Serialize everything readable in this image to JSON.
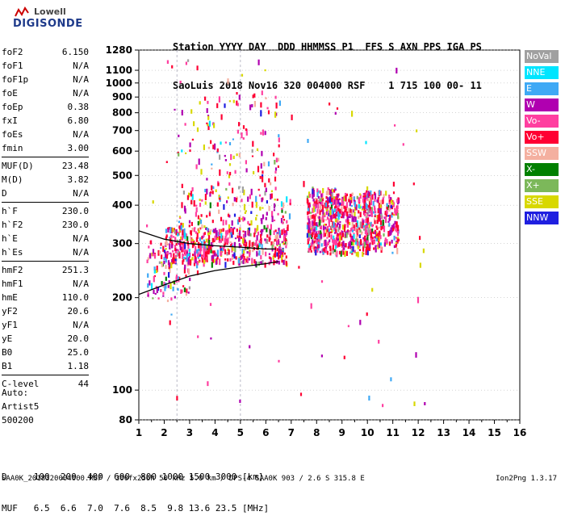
{
  "logo": {
    "line1": "Lowell",
    "line2": "DIGISONDE"
  },
  "header": {
    "line1": "Station YYYY DAY  DDD HHMMSS P1  FFS S AXN PPS IGA PS",
    "line2": "SaoLuis 2018 Nov16 320 004000 RSF    1 715 100 00- 11"
  },
  "params": [
    [
      {
        "label": "foF2",
        "value": "6.150"
      },
      {
        "label": "foF1",
        "value": "N/A"
      },
      {
        "label": "foF1p",
        "value": "N/A"
      },
      {
        "label": "foE",
        "value": "N/A"
      },
      {
        "label": "foEp",
        "value": "0.38"
      },
      {
        "label": "fxI",
        "value": "6.80"
      },
      {
        "label": "foEs",
        "value": "N/A"
      },
      {
        "label": "fmin",
        "value": "3.00"
      }
    ],
    [
      {
        "label": "MUF(D)",
        "value": "23.48"
      },
      {
        "label": "M(D)",
        "value": "3.82"
      },
      {
        "label": "D",
        "value": "N/A"
      }
    ],
    [
      {
        "label": "h`F",
        "value": "230.0"
      },
      {
        "label": "h`F2",
        "value": "230.0"
      },
      {
        "label": "h`E",
        "value": "N/A"
      },
      {
        "label": "h`Es",
        "value": "N/A"
      }
    ],
    [
      {
        "label": "hmF2",
        "value": "251.3"
      },
      {
        "label": "hmF1",
        "value": "N/A"
      },
      {
        "label": "hmE",
        "value": "110.0"
      },
      {
        "label": "yF2",
        "value": "20.6"
      },
      {
        "label": "yF1",
        "value": "N/A"
      },
      {
        "label": "yE",
        "value": "20.0"
      },
      {
        "label": "B0",
        "value": "25.0"
      },
      {
        "label": "B1",
        "value": "1.18"
      }
    ],
    [
      {
        "label": "C-level",
        "value": "44"
      }
    ]
  ],
  "auto": {
    "line1": "Auto:",
    "line2": "Artist5",
    "line3": "500200"
  },
  "legend": [
    {
      "label": "NoVal",
      "color": "#a0a0a0"
    },
    {
      "label": "NNE",
      "color": "#00e5ff"
    },
    {
      "label": "E",
      "color": "#3fa9f5"
    },
    {
      "label": "W",
      "color": "#b000b0"
    },
    {
      "label": "Vo-",
      "color": "#ff3fa0"
    },
    {
      "label": "Vo+",
      "color": "#ff0033"
    },
    {
      "label": "SSW",
      "color": "#f4b0a0"
    },
    {
      "label": "X-",
      "color": "#008000"
    },
    {
      "label": "X+",
      "color": "#7cb85a"
    },
    {
      "label": "SSE",
      "color": "#d8d800"
    },
    {
      "label": "NNW",
      "color": "#1f1fe0"
    }
  ],
  "bottom": {
    "line1": "D     100  200  400  600  800 1000 1500 3000 [km]",
    "line2": "MUF   6.5  6.6  7.0  7.6  8.5  9.8 13.6 23.5 [MHz]"
  },
  "footer": {
    "left": "SAA0K_2018320004000.RSF / 300fx256h 50 kHz 5.0 km / DPS-4 SAA0K 903 / 2.6 S 315.8 E",
    "right": "Ion2Png 1.3.17"
  },
  "chart_data": {
    "type": "scatter",
    "title": "",
    "xlabel": "",
    "ylabel": "",
    "xlim": [
      1,
      16
    ],
    "ylim": [
      80,
      1280
    ],
    "y_scale": "log",
    "x_ticks": [
      1,
      2,
      3,
      4,
      5,
      6,
      7,
      8,
      9,
      10,
      11,
      12,
      13,
      14,
      15,
      16
    ],
    "y_ticks": [
      80,
      100,
      200,
      300,
      400,
      500,
      600,
      700,
      800,
      900,
      1000,
      1100,
      1280
    ],
    "grid": "dashed vertical at 2.5,5 ; dotted horizontal",
    "traces": [
      {
        "name": "",
        "x": [
          1.0,
          2.0,
          3.0,
          4.0,
          5.0,
          6.0,
          6.5
        ],
        "y": [
          205,
          220,
          235,
          245,
          252,
          258,
          262
        ]
      },
      {
        "name": "",
        "x": [
          1.0,
          2.0,
          3.0,
          4.0,
          5.0,
          5.5,
          6.0,
          6.4
        ],
        "y": [
          330,
          310,
          300,
          295,
          292,
          290,
          288,
          288
        ]
      }
    ],
    "clusters": [
      {
        "x": [
          1.3,
          3.0
        ],
        "y": [
          200,
          310
        ],
        "density": 110
      },
      {
        "x": [
          2.0,
          6.8
        ],
        "y": [
          260,
          340
        ],
        "density": 480
      },
      {
        "x": [
          2.5,
          7.0
        ],
        "y": [
          330,
          460
        ],
        "density": 160
      },
      {
        "x": [
          7.6,
          8.8
        ],
        "y": [
          280,
          460
        ],
        "density": 360
      },
      {
        "x": [
          8.8,
          10.0
        ],
        "y": [
          280,
          440
        ],
        "density": 260
      },
      {
        "x": [
          9.8,
          11.2
        ],
        "y": [
          290,
          450
        ],
        "density": 260
      },
      {
        "x": [
          2.5,
          6.5
        ],
        "y": [
          460,
          950
        ],
        "density": 120
      },
      {
        "x": [
          1.2,
          12.5
        ],
        "y": [
          90,
          1280
        ],
        "density": 90
      }
    ]
  }
}
